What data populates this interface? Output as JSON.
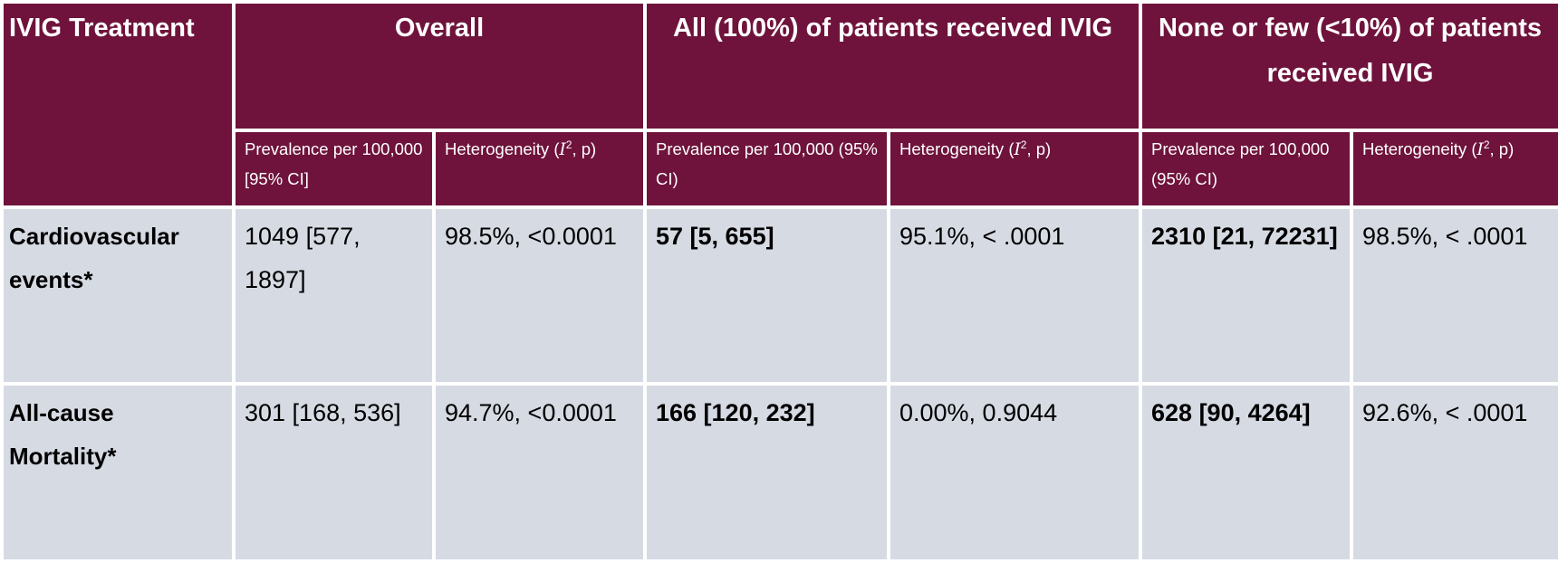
{
  "header": {
    "corner": "IVIG Treatment",
    "groups": [
      "Overall",
      "All (100%) of patients received IVIG",
      "None or few (<10%) of patients received IVIG"
    ],
    "sub": {
      "prev_overall": "Prevalence per 100,000 [95% CI]",
      "prev_all": "Prevalence per 100,000 (95% CI)",
      "prev_none": "Prevalence per 100,000  (95% CI)",
      "het_prefix": "Heterogeneity (",
      "het_var": "I",
      "het_sup": "2",
      "het_suffix": ", p)"
    }
  },
  "rows": [
    {
      "label": "Cardiovascular events*",
      "overall_prev": "1049 [577, 1897]",
      "overall_het": "98.5%, <0.0001",
      "all_prev": "57 [5, 655]",
      "all_het": "95.1%, < .0001",
      "none_prev": "2310 [21, 72231]",
      "none_het": "98.5%, < .0001"
    },
    {
      "label": "All-cause Mortality*",
      "overall_prev": "301 [168, 536]",
      "overall_het": "94.7%, <0.0001",
      "all_prev": "166 [120, 232]",
      "all_het": "0.00%, 0.9044",
      "none_prev": "628 [90, 4264]",
      "none_het": "92.6%, < .0001"
    }
  ],
  "colors": {
    "header_bg": "#6f133c",
    "body_bg": "#d6dae3",
    "border": "#ffffff"
  }
}
